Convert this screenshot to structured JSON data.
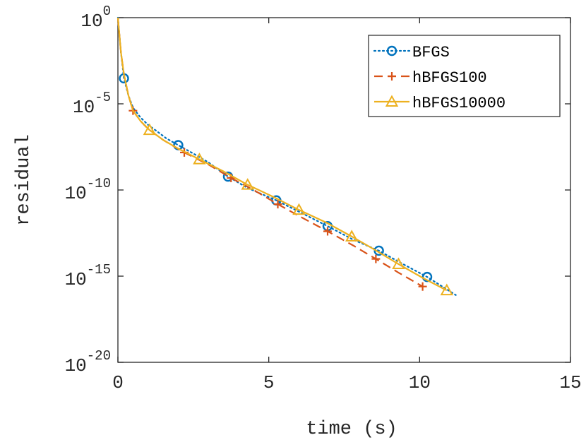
{
  "chart_data": {
    "type": "line",
    "xlabel": "time (s)",
    "ylabel": "residual",
    "xlim": [
      0,
      15
    ],
    "ylim": [
      1e-20,
      1
    ],
    "yscale": "log",
    "grid": false,
    "legend_position": "top-right",
    "x_ticks": [
      "0",
      "5",
      "10",
      "15"
    ],
    "y_ticks": [
      {
        "base": "10",
        "exp": "0",
        "value": 1
      },
      {
        "base": "10",
        "exp": "-5",
        "value": 1e-05
      },
      {
        "base": "10",
        "exp": "-10",
        "value": 1e-10
      },
      {
        "base": "10",
        "exp": "-15",
        "value": 1e-15
      },
      {
        "base": "10",
        "exp": "-20",
        "value": 1e-20
      }
    ],
    "series": [
      {
        "name": "BFGS",
        "color": "#0072BD",
        "line_style": "dotted",
        "marker": "circle",
        "x": [
          0,
          0.05,
          0.1,
          0.2,
          0.35,
          0.5,
          0.75,
          1.0,
          1.3,
          1.6,
          2.0,
          2.5,
          3.0,
          3.65,
          4.3,
          5.25,
          6.1,
          6.95,
          7.8,
          8.65,
          9.45,
          10.25,
          11.2
        ],
        "y": [
          1,
          0.1,
          0.01,
          0.0003,
          3e-05,
          6e-06,
          1.6e-06,
          6e-07,
          2.5e-07,
          1e-07,
          4e-08,
          1.3e-08,
          4e-09,
          6e-10,
          1.3e-10,
          2.5e-11,
          4.5e-12,
          8e-13,
          1.3e-13,
          3e-14,
          5e-15,
          9e-16,
          8e-17
        ],
        "marker_x": [
          0.2,
          2.0,
          3.65,
          5.25,
          6.95,
          8.65,
          10.25
        ]
      },
      {
        "name": "hBFGS100",
        "color": "#D95319",
        "line_style": "dashed",
        "marker": "plus",
        "x": [
          0,
          0.05,
          0.1,
          0.2,
          0.35,
          0.5,
          0.75,
          1.0,
          1.5,
          2.2,
          3.0,
          3.75,
          4.5,
          5.3,
          6.1,
          6.95,
          7.8,
          8.55,
          9.3,
          10.1
        ],
        "y": [
          1,
          0.1,
          0.01,
          0.0005,
          3e-05,
          4e-06,
          1e-06,
          3.5e-07,
          8e-08,
          1.5e-08,
          3e-09,
          5e-10,
          1e-10,
          1.5e-11,
          2.5e-12,
          4e-13,
          6e-14,
          1e-14,
          1.6e-15,
          2.5e-16
        ],
        "marker_x": [
          0.5,
          2.2,
          3.75,
          5.3,
          6.95,
          8.55,
          10.1
        ]
      },
      {
        "name": "hBFGS10000",
        "color": "#EDB120",
        "line_style": "solid",
        "marker": "triangle",
        "x": [
          0,
          0.05,
          0.1,
          0.2,
          0.35,
          0.5,
          0.75,
          1.05,
          1.5,
          2.0,
          2.7,
          3.5,
          4.3,
          5.15,
          6.0,
          6.9,
          7.75,
          8.5,
          9.3,
          10.1,
          10.9
        ],
        "y": [
          1,
          0.1,
          0.01,
          0.0005,
          3e-05,
          4e-06,
          1e-06,
          3e-07,
          8e-08,
          2.5e-08,
          6e-09,
          1.2e-09,
          2e-10,
          4e-11,
          7e-12,
          1.3e-12,
          2e-13,
          3.5e-14,
          5e-15,
          8e-16,
          1.5e-16
        ],
        "marker_x": [
          1.05,
          2.7,
          4.3,
          6.0,
          7.75,
          9.3,
          10.9
        ]
      }
    ]
  }
}
